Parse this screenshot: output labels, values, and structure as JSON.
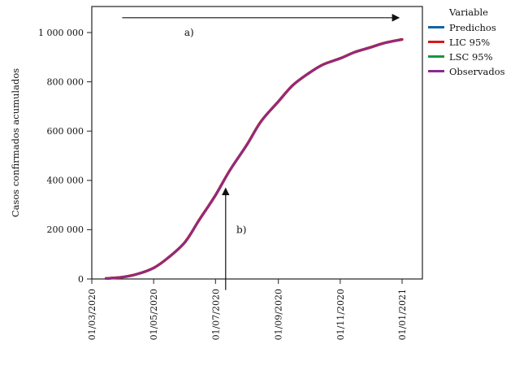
{
  "chart_data": {
    "type": "line",
    "title": "",
    "xlabel": "",
    "ylabel": "Casos confirmados acumulados",
    "x_tick_labels": [
      "01/03/2020",
      "01/05/2020",
      "01/07/2020",
      "01/09/2020",
      "01/11/2020",
      "01/01/2021"
    ],
    "x_tick_days": [
      0,
      61,
      122,
      184,
      245,
      306
    ],
    "y_tick_labels": [
      "0",
      "200 000",
      "400 000",
      "600 000",
      "800 000",
      "1 000 000"
    ],
    "y_tick_values": [
      0,
      200000,
      400000,
      600000,
      800000,
      1000000
    ],
    "ylim": [
      0,
      1105000
    ],
    "grid": false,
    "legend_position": "right",
    "note": "All four series overlap along the same sigmoid curve; x_days counted from 01/03/2020",
    "x_days": [
      14,
      31,
      45,
      61,
      75,
      92,
      106,
      122,
      136,
      153,
      167,
      184,
      198,
      214,
      228,
      245,
      259,
      275,
      289,
      306
    ],
    "series": [
      {
        "name": "Predichos",
        "color": "#1464a5",
        "values": [
          2000,
          8000,
          20000,
          45000,
          85000,
          150000,
          240000,
          340000,
          440000,
          545000,
          640000,
          720000,
          785000,
          835000,
          870000,
          895000,
          920000,
          940000,
          958000,
          972000
        ]
      },
      {
        "name": "LIC 95%",
        "color": "#d7191c",
        "values": [
          2000,
          8000,
          20000,
          45000,
          85000,
          150000,
          240000,
          340000,
          440000,
          545000,
          640000,
          720000,
          785000,
          835000,
          870000,
          895000,
          920000,
          940000,
          958000,
          972000
        ]
      },
      {
        "name": "LSC 95%",
        "color": "#1a9641",
        "values": [
          2000,
          8000,
          20000,
          45000,
          85000,
          150000,
          240000,
          340000,
          440000,
          545000,
          640000,
          720000,
          785000,
          835000,
          870000,
          895000,
          920000,
          940000,
          958000,
          972000
        ]
      },
      {
        "name": "Observados",
        "color": "#8b2a8f",
        "values": [
          2000,
          8000,
          20000,
          45000,
          85000,
          150000,
          240000,
          340000,
          440000,
          545000,
          640000,
          720000,
          785000,
          835000,
          870000,
          895000,
          920000,
          940000,
          958000,
          972000
        ]
      }
    ],
    "legend": {
      "title": "Variable"
    },
    "annotations": [
      {
        "label": "a)",
        "type": "horizontal-arrow",
        "x1_day": 30,
        "x2_day": 303,
        "y_value": 1060000,
        "label_day": 96,
        "label_value": 1000000
      },
      {
        "label": "b)",
        "type": "vertical-arrow",
        "x_day": 132,
        "y1_value": -45000,
        "y2_value": 368000,
        "label_day": 141,
        "label_value": 200000
      }
    ]
  }
}
